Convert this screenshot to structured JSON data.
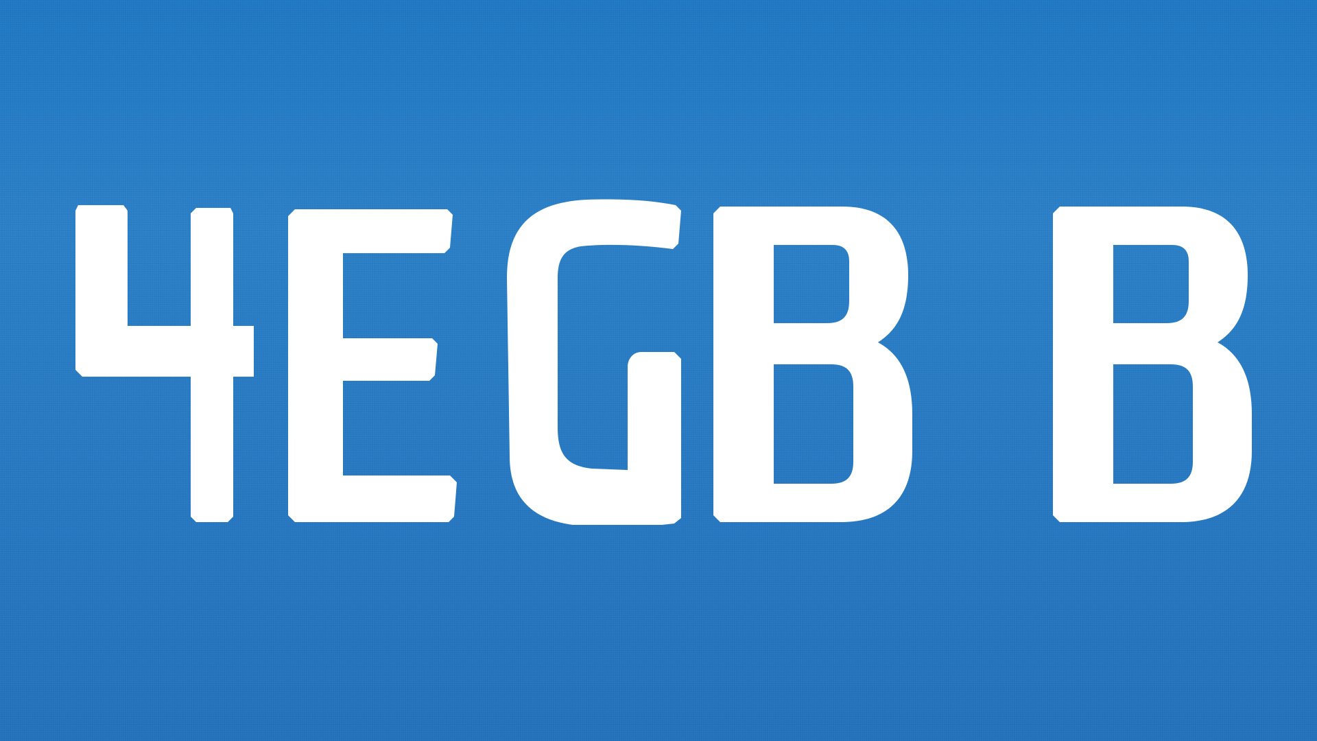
{
  "headline": {
    "text": "4EGB B",
    "chars": [
      "4",
      "E",
      "G",
      "B",
      "B"
    ],
    "text_color": "#ffffff"
  },
  "background": {
    "color_top": "#1f78c3",
    "color_bottom": "#2371bb",
    "texture": "grain"
  }
}
